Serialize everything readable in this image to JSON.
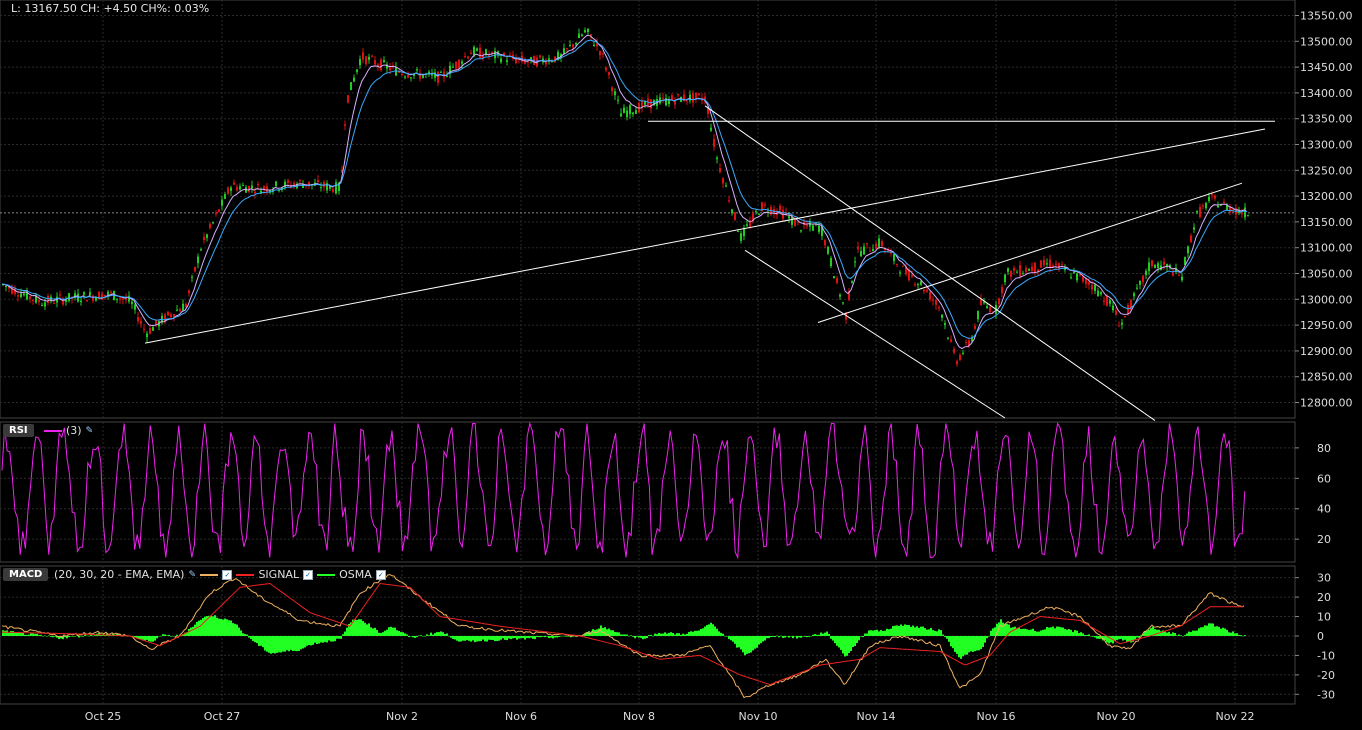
{
  "header": {
    "quote": "L: 13167.50 CH: +4.50   CH%: 0.03%"
  },
  "colors": {
    "bg": "#000000",
    "grid": "#2a2a2a",
    "up": "#22cc22",
    "down": "#dd1111",
    "ema_fast": "#d8b0ff",
    "ema_slow": "#3aaaff",
    "rsi": "#ee22ee",
    "macd": "#f0b060",
    "signal": "#ee2222",
    "osma": "#22ff22",
    "trend": "#ffffff"
  },
  "rsi_panel": {
    "tag": "RSI",
    "params": "(3)"
  },
  "macd_panel": {
    "tag": "MACD",
    "params": "(20, 30, 20 - EMA, EMA)",
    "signal_label": "SIGNAL",
    "osma_label": "OSMA"
  },
  "chart_data": [
    {
      "type": "candlestick",
      "name": "price",
      "x_ticks": [
        "Oct 25",
        "Oct 27",
        "Nov 2",
        "Nov 6",
        "Nov 8",
        "Nov 10",
        "Nov 14",
        "Nov 16",
        "Nov 20",
        "Nov 22"
      ],
      "y_ticks": [
        13550,
        13500,
        13450,
        13400,
        13350,
        13300,
        13250,
        13200,
        13150,
        13100,
        13050,
        13000,
        12950,
        12900,
        12850,
        12800
      ],
      "ylim": [
        12770,
        13580
      ],
      "last": 13167.5,
      "anchors": [
        [
          0,
          13030
        ],
        [
          40,
          12995
        ],
        [
          80,
          13005
        ],
        [
          110,
          13010
        ],
        [
          130,
          12995
        ],
        [
          145,
          12935
        ],
        [
          165,
          12965
        ],
        [
          185,
          12990
        ],
        [
          200,
          13100
        ],
        [
          230,
          13220
        ],
        [
          260,
          13215
        ],
        [
          300,
          13225
        ],
        [
          340,
          13215
        ],
        [
          345,
          13380
        ],
        [
          360,
          13470
        ],
        [
          400,
          13440
        ],
        [
          440,
          13430
        ],
        [
          470,
          13480
        ],
        [
          500,
          13470
        ],
        [
          530,
          13460
        ],
        [
          560,
          13470
        ],
        [
          585,
          13520
        ],
        [
          600,
          13480
        ],
        [
          620,
          13360
        ],
        [
          650,
          13380
        ],
        [
          680,
          13390
        ],
        [
          705,
          13390
        ],
        [
          715,
          13280
        ],
        [
          740,
          13120
        ],
        [
          760,
          13180
        ],
        [
          780,
          13170
        ],
        [
          800,
          13140
        ],
        [
          820,
          13140
        ],
        [
          845,
          12970
        ],
        [
          855,
          13090
        ],
        [
          880,
          13110
        ],
        [
          900,
          13060
        ],
        [
          920,
          13030
        ],
        [
          940,
          12980
        ],
        [
          955,
          12880
        ],
        [
          970,
          12920
        ],
        [
          980,
          12990
        ],
        [
          995,
          12980
        ],
        [
          1005,
          13050
        ],
        [
          1030,
          13060
        ],
        [
          1050,
          13070
        ],
        [
          1070,
          13050
        ],
        [
          1090,
          13030
        ],
        [
          1110,
          12990
        ],
        [
          1120,
          12950
        ],
        [
          1135,
          13010
        ],
        [
          1150,
          13070
        ],
        [
          1170,
          13060
        ],
        [
          1180,
          13040
        ],
        [
          1195,
          13160
        ],
        [
          1210,
          13195
        ],
        [
          1225,
          13180
        ],
        [
          1245,
          13167
        ]
      ],
      "trendlines": [
        [
          [
            145,
            12915
          ],
          [
            1265,
            13330
          ]
        ],
        [
          [
            648,
            13345
          ],
          [
            1275,
            13345
          ]
        ],
        [
          [
            705,
            13375
          ],
          [
            1155,
            12765
          ]
        ],
        [
          [
            745,
            13095
          ],
          [
            1005,
            12770
          ]
        ],
        [
          [
            818,
            12955
          ],
          [
            1242,
            13225
          ]
        ]
      ]
    },
    {
      "type": "line",
      "name": "RSI",
      "y_ticks": [
        80,
        60,
        40,
        20
      ],
      "ylim": [
        5,
        97
      ]
    },
    {
      "type": "line",
      "name": "MACD",
      "y_ticks": [
        30,
        20,
        10,
        0,
        -10,
        -20,
        -30
      ],
      "ylim": [
        -35,
        36
      ],
      "macd_anchors": [
        [
          0,
          5
        ],
        [
          60,
          0
        ],
        [
          100,
          2
        ],
        [
          130,
          0
        ],
        [
          150,
          -7
        ],
        [
          180,
          0
        ],
        [
          210,
          22
        ],
        [
          235,
          30
        ],
        [
          260,
          20
        ],
        [
          300,
          8
        ],
        [
          340,
          5
        ],
        [
          360,
          22
        ],
        [
          390,
          32
        ],
        [
          420,
          20
        ],
        [
          460,
          5
        ],
        [
          520,
          2
        ],
        [
          580,
          0
        ],
        [
          600,
          3
        ],
        [
          640,
          -10
        ],
        [
          680,
          -10
        ],
        [
          710,
          -5
        ],
        [
          745,
          -32
        ],
        [
          770,
          -25
        ],
        [
          800,
          -20
        ],
        [
          825,
          -12
        ],
        [
          845,
          -25
        ],
        [
          870,
          -5
        ],
        [
          900,
          0
        ],
        [
          940,
          -5
        ],
        [
          960,
          -27
        ],
        [
          980,
          -20
        ],
        [
          1000,
          5
        ],
        [
          1050,
          15
        ],
        [
          1080,
          10
        ],
        [
          1110,
          -5
        ],
        [
          1130,
          -7
        ],
        [
          1150,
          5
        ],
        [
          1180,
          5
        ],
        [
          1210,
          22
        ],
        [
          1240,
          15
        ]
      ],
      "signal_anchors": [
        [
          0,
          2
        ],
        [
          80,
          1
        ],
        [
          130,
          0
        ],
        [
          160,
          -5
        ],
        [
          200,
          5
        ],
        [
          240,
          25
        ],
        [
          270,
          27
        ],
        [
          310,
          12
        ],
        [
          350,
          5
        ],
        [
          380,
          27
        ],
        [
          410,
          25
        ],
        [
          440,
          10
        ],
        [
          500,
          5
        ],
        [
          580,
          0
        ],
        [
          620,
          -5
        ],
        [
          660,
          -12
        ],
        [
          700,
          -10
        ],
        [
          740,
          -20
        ],
        [
          770,
          -25
        ],
        [
          820,
          -15
        ],
        [
          860,
          -12
        ],
        [
          880,
          -6
        ],
        [
          940,
          -8
        ],
        [
          965,
          -15
        ],
        [
          990,
          -10
        ],
        [
          1010,
          2
        ],
        [
          1040,
          10
        ],
        [
          1080,
          8
        ],
        [
          1120,
          -4
        ],
        [
          1150,
          0
        ],
        [
          1180,
          5
        ],
        [
          1210,
          15
        ],
        [
          1245,
          15
        ]
      ]
    }
  ]
}
